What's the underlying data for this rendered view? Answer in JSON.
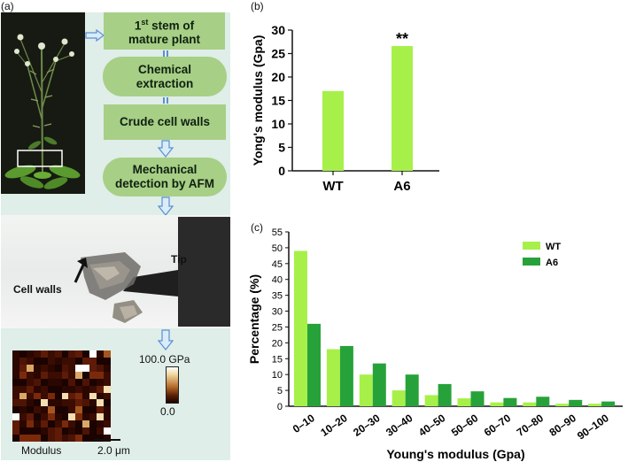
{
  "panel_a": {
    "label": "(a)",
    "flow": [
      {
        "text_main": "1",
        "text_sup": "st",
        "text_rest": " stem of",
        "line2": "mature plant"
      },
      {
        "line1": "Chemical",
        "line2": "extraction"
      },
      {
        "line1": "Crude cell walls"
      },
      {
        "line1": "Mechanical",
        "line2": "detection by AFM"
      }
    ],
    "afm_labels": {
      "tip": "Tip",
      "cell_walls": "Cell walls"
    },
    "colorbar": {
      "max": "100.0 GPa",
      "min": "0.0"
    },
    "heatmap_label": "Modulus",
    "scale_bar": "2.0 μm"
  },
  "panel_b": {
    "label": "(b)",
    "chart_data": {
      "type": "bar",
      "categories": [
        "WT",
        "A6"
      ],
      "values": [
        17,
        26.6
      ],
      "ylabel": "Yong's modulus (Gpa)",
      "ylim": [
        0,
        30
      ],
      "yticks": [
        "0",
        "5",
        "10",
        "15",
        "20",
        "25",
        "30"
      ],
      "annotation": "**",
      "bar_color": "#a7f04a"
    }
  },
  "panel_c": {
    "label": "(c)",
    "chart_data": {
      "type": "bar",
      "categories": [
        "0–10",
        "10–20",
        "20–30",
        "30–40",
        "40–50",
        "50–60",
        "60–70",
        "70–80",
        "80–90",
        "90–100"
      ],
      "series": [
        {
          "name": "WT",
          "values": [
            49,
            18,
            10,
            5,
            3.5,
            2.5,
            1.2,
            1.2,
            0.8,
            0.8
          ],
          "color": "#a7f04a"
        },
        {
          "name": "A6",
          "values": [
            26,
            19,
            13.5,
            10,
            7,
            4.7,
            2.6,
            3,
            2,
            1.5
          ],
          "color": "#27a23a"
        }
      ],
      "xlabel": "Young's modulus (Gpa)",
      "ylabel": "Percentage (%)",
      "ylim": [
        0,
        55
      ],
      "yticks": [
        "0",
        "5",
        "10",
        "15",
        "20",
        "25",
        "30",
        "35",
        "40",
        "45",
        "50",
        "55"
      ],
      "legend": "top-right"
    }
  }
}
